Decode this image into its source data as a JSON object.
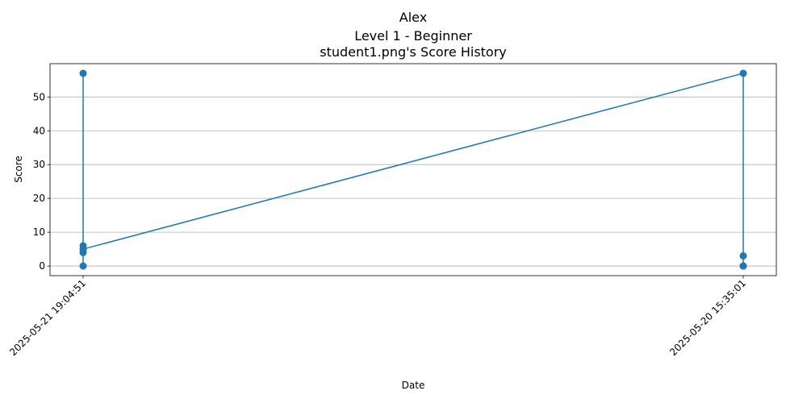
{
  "chart_data": {
    "type": "line",
    "title_lines": [
      "Alex",
      "Level 1 - Beginner",
      "student1.png's Score History"
    ],
    "xlabel": "Date",
    "ylabel": "Score",
    "categories": [
      "2025-05-21 19:04:51",
      "2025-05-20 15:35:01"
    ],
    "series": [
      {
        "color": "#1f77b4",
        "points": [
          {
            "x": "2025-05-21 19:04:51",
            "y": 57
          },
          {
            "x": "2025-05-21 19:04:51",
            "y": 0
          },
          {
            "x": "2025-05-21 19:04:51",
            "y": 6
          },
          {
            "x": "2025-05-21 19:04:51",
            "y": 4
          },
          {
            "x": "2025-05-21 19:04:51",
            "y": 5
          },
          {
            "x": "2025-05-20 15:35:01",
            "y": 57
          },
          {
            "x": "2025-05-20 15:35:01",
            "y": 0
          },
          {
            "x": "2025-05-20 15:35:01",
            "y": 3
          },
          {
            "x": "2025-05-20 15:35:01",
            "y": 0
          }
        ]
      }
    ],
    "ylim": [
      -2.85,
      59.85
    ],
    "yticks": [
      0,
      10,
      20,
      30,
      40,
      50
    ],
    "grid": "y-only",
    "legend": "none"
  }
}
